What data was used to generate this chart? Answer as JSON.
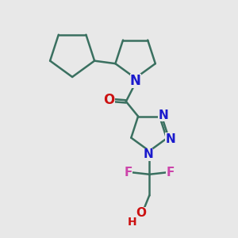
{
  "bg_color": "#e8e8e8",
  "bond_color": "#3a7060",
  "bond_width": 1.8,
  "n_color": "#1a1acc",
  "o_color": "#cc1111",
  "f_color": "#cc44aa",
  "font_size_atom": 11,
  "figsize": [
    3.0,
    3.0
  ],
  "dpi": 100,
  "xlim": [
    0,
    10
  ],
  "ylim": [
    0,
    10
  ]
}
